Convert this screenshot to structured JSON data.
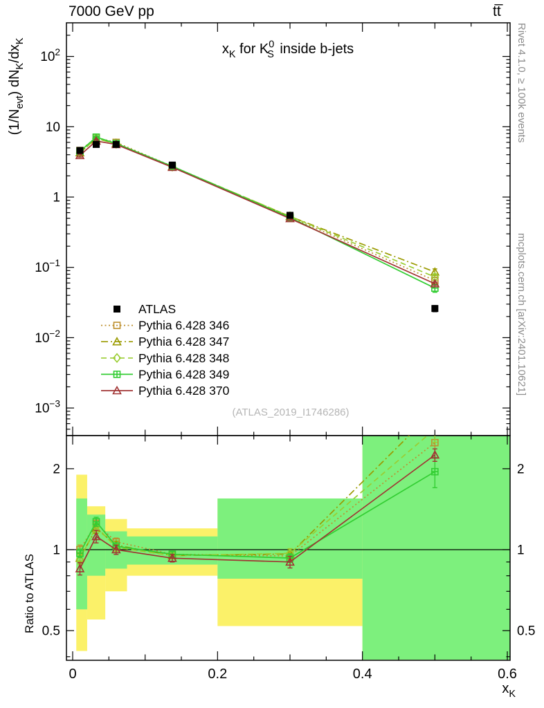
{
  "header": {
    "left": "7000 GeV pp",
    "right": "tt̅"
  },
  "side_notes": {
    "top_right": "Rivet 4.1.0, ≥ 100k events",
    "bottom_right": "mcplots.cern.ch [arXiv:2401.10621]"
  },
  "watermark": "(ATLAS_2019_I1746286)",
  "chart_data": {
    "type": "line",
    "title_parts": [
      {
        "t": "x"
      },
      {
        "t": "K",
        "style": "sub"
      },
      {
        "t": " for K"
      },
      {
        "t": "0",
        "style": "sup"
      },
      {
        "t": "S",
        "style": "subback"
      },
      {
        "t": " inside b-jets"
      }
    ],
    "x_axis": {
      "ticks": [
        0,
        0.2,
        0.4,
        0.6
      ],
      "tick_labels": [
        "0",
        "0.2",
        "0.4",
        "0.6"
      ],
      "minor_step": 0.05,
      "range": [
        0,
        0.6
      ],
      "label_parts": [
        {
          "t": "x"
        },
        {
          "t": "K",
          "style": "sub"
        }
      ]
    },
    "y_axis_top": {
      "scale": "log",
      "major_exponents": [
        -3,
        -2,
        -1,
        0,
        1,
        2
      ],
      "label_parts": [
        {
          "t": "(1/N"
        },
        {
          "t": "evt",
          "style": "sub"
        },
        {
          "t": ") dN"
        },
        {
          "t": "K",
          "style": "sub"
        },
        {
          "t": "/dx"
        },
        {
          "t": "K",
          "style": "sub"
        }
      ]
    },
    "y_axis_ratio": {
      "scale": "log",
      "label": "Ratio to ATLAS",
      "ticks": [
        0.5,
        1,
        2
      ],
      "tick_labels": [
        "0.5",
        "1",
        "2"
      ],
      "minor_ticks": [
        0.4,
        0.6,
        0.7,
        0.8,
        0.9
      ],
      "range": [
        0.39,
        2.65
      ]
    },
    "x": [
      0.01,
      0.0325,
      0.06,
      0.1375,
      0.3,
      0.5
    ],
    "bin_edges": [
      0.005,
      0.02,
      0.045,
      0.075,
      0.2,
      0.4,
      0.62
    ],
    "reference": {
      "label": "ATLAS",
      "color": "#000000",
      "marker": "square-filled",
      "values": [
        4.6,
        5.6,
        5.6,
        2.85,
        0.55,
        0.026
      ],
      "err_frac": [
        0.05,
        0.04,
        0.035,
        0.035,
        0.05,
        0.1
      ]
    },
    "series": [
      {
        "name": "Pythia 6.428 346",
        "color": "#bd8f2e",
        "line": "dotted",
        "marker": "square-open",
        "values": [
          4.6,
          7.0,
          5.99,
          2.74,
          0.521,
          0.065
        ],
        "ratio_err": [
          0.04,
          0.05,
          0.035,
          0.025,
          0.04,
          0.3
        ]
      },
      {
        "name": "Pythia 6.428 347",
        "color": "#9a9a00",
        "line": "dashdot",
        "marker": "triangle-open",
        "values": [
          4.28,
          6.72,
          5.82,
          2.71,
          0.53,
          0.086
        ],
        "ratio_err": [
          0.04,
          0.05,
          0.035,
          0.025,
          0.04,
          0.35
        ]
      },
      {
        "name": "Pythia 6.428 348",
        "color": "#9acd32",
        "line": "dashed",
        "marker": "diamond-open",
        "values": [
          4.23,
          6.83,
          5.71,
          2.71,
          0.533,
          0.073
        ],
        "ratio_err": [
          0.04,
          0.05,
          0.035,
          0.025,
          0.04,
          0.3
        ]
      },
      {
        "name": "Pythia 6.428 349",
        "color": "#32cd32",
        "line": "solid",
        "marker": "square-plus",
        "values": [
          4.46,
          7.11,
          5.77,
          2.74,
          0.512,
          0.0507
        ],
        "ratio_err": [
          0.035,
          0.05,
          0.03,
          0.02,
          0.035,
          0.25
        ]
      },
      {
        "name": "Pythia 6.428 370",
        "color": "#a03232",
        "line": "solid",
        "marker": "triangle-open",
        "values": [
          3.91,
          6.27,
          5.6,
          2.65,
          0.495,
          0.0585
        ],
        "ratio_err": [
          0.045,
          0.06,
          0.04,
          0.03,
          0.045,
          0.12
        ]
      }
    ],
    "bands": {
      "yellow_color": "#fbf169",
      "green_color": "#7df07d",
      "yellow": [
        [
          0.42,
          1.9
        ],
        [
          0.55,
          1.45
        ],
        [
          0.7,
          1.3
        ],
        [
          0.8,
          1.2
        ],
        [
          0.52,
          1.55
        ],
        [
          0.39,
          2.66
        ]
      ],
      "green": [
        [
          0.6,
          1.55
        ],
        [
          0.8,
          1.35
        ],
        [
          0.85,
          1.17
        ],
        [
          0.88,
          1.12
        ],
        [
          0.78,
          1.55
        ],
        [
          0.39,
          2.66
        ]
      ]
    }
  }
}
